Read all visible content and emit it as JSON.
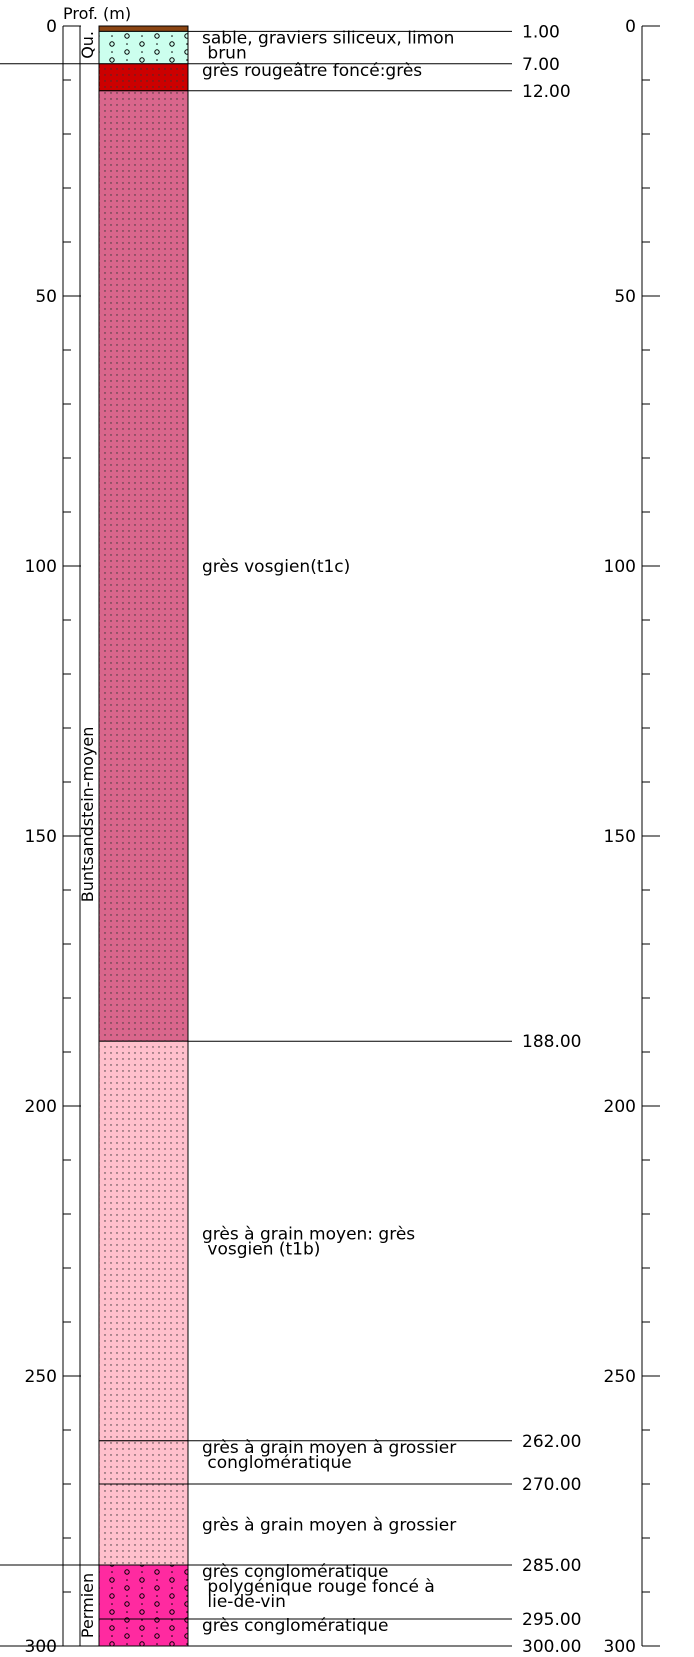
{
  "header": {
    "depth_label": "Prof. (m)"
  },
  "axis": {
    "min": 0,
    "max": 300,
    "major_ticks": [
      0,
      50,
      100,
      150,
      200,
      250,
      300
    ],
    "major_labels": [
      "0",
      "50",
      "100",
      "150",
      "200",
      "250",
      "300"
    ],
    "minor_step": 10
  },
  "stratigraphy": [
    {
      "id": "qu",
      "label": "Qu.",
      "top": 0,
      "bottom": 7
    },
    {
      "id": "buntsandstein",
      "label": "Buntsandstein-moyen",
      "top": 7,
      "bottom": 285
    },
    {
      "id": "permien",
      "label": "Permien",
      "top": 285,
      "bottom": 300
    }
  ],
  "layers": [
    {
      "top": 0,
      "bottom": 1,
      "color": "#8B4513",
      "pattern": "none",
      "description": [],
      "depth_label": "1.00"
    },
    {
      "top": 1,
      "bottom": 7,
      "color": "#ccffee",
      "pattern": "gravel",
      "description": [
        "sable, graviers siliceux, limon",
        " brun"
      ],
      "depth_label": "7.00"
    },
    {
      "top": 7,
      "bottom": 12,
      "color": "#cc0000",
      "pattern": "dots",
      "description": [
        "grès rougeâtre foncé:grès"
      ],
      "depth_label": "12.00"
    },
    {
      "top": 12,
      "bottom": 188,
      "color": "#d9668c",
      "pattern": "dots",
      "description": [
        "grès vosgien(t1c)"
      ],
      "depth_label": "188.00"
    },
    {
      "top": 188,
      "bottom": 262,
      "color": "#ffc0cc",
      "pattern": "dots",
      "description": [
        "grès à grain moyen: grès",
        " vosgien (t1b)"
      ],
      "depth_label": "262.00"
    },
    {
      "top": 262,
      "bottom": 270,
      "color": "#ffc0cc",
      "pattern": "dots",
      "description": [
        "grès à grain moyen à grossier",
        " conglomératique"
      ],
      "depth_label": "270.00"
    },
    {
      "top": 270,
      "bottom": 285,
      "color": "#ffc0cc",
      "pattern": "dots",
      "description": [
        "grès à grain moyen à grossier"
      ],
      "depth_label": "285.00"
    },
    {
      "top": 285,
      "bottom": 295,
      "color": "#ff2aa0",
      "pattern": "gravel",
      "description": [
        "grès conglomératique",
        " polygénique rouge foncé à",
        " lie-de-vin"
      ],
      "depth_label": "295.00"
    },
    {
      "top": 295,
      "bottom": 300,
      "color": "#ff2aa0",
      "pattern": "gravel",
      "description": [
        "grès conglomératique"
      ],
      "depth_label": "300.00"
    }
  ]
}
